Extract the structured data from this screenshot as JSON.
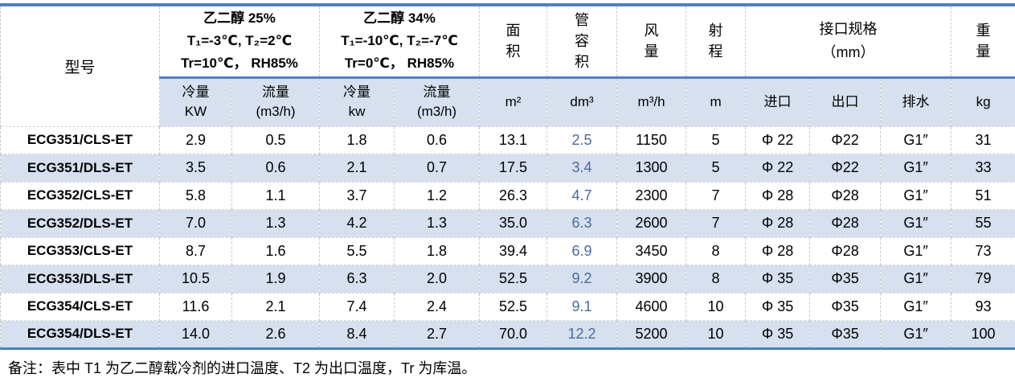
{
  "table": {
    "header": {
      "model_label": "型号",
      "group1": "乙二醇 25%\nT₁=-3℃, T₂=2℃\nTr=10℃， RH85%",
      "group2": "乙二醇 34%\nT₁=-10℃, T₂=-7℃\nTr=0℃， RH85%",
      "area": "面\n积",
      "tube_volume": "管\n容\n积",
      "air_flow": "风\n量",
      "throw": "射\n程",
      "interface": "接口规格\n（mm）",
      "weight": "重\n量",
      "sub": [
        "冷量\nKW",
        "流量\n(m3/h)",
        "冷量\nkw",
        "流量\n(m3/h)",
        "m²",
        "dm³",
        "m³/h",
        "m",
        "进口",
        "出口",
        "排水",
        "kg"
      ]
    },
    "rows": [
      [
        "ECG351/CLS-ET",
        "2.9",
        "0.5",
        "1.8",
        "0.6",
        "13.1",
        "2.5",
        "1150",
        "5",
        "Φ 22",
        "Φ22",
        "G1″",
        "31"
      ],
      [
        "ECG351/DLS-ET",
        "3.5",
        "0.6",
        "2.1",
        "0.7",
        "17.5",
        "3.4",
        "1300",
        "5",
        "Φ 22",
        "Φ22",
        "G1″",
        "33"
      ],
      [
        "ECG352/CLS-ET",
        "5.8",
        "1.1",
        "3.7",
        "1.2",
        "26.3",
        "4.7",
        "2300",
        "7",
        "Φ 28",
        "Φ28",
        "G1″",
        "51"
      ],
      [
        "ECG352/DLS-ET",
        "7.0",
        "1.3",
        "4.2",
        "1.3",
        "35.0",
        "6.3",
        "2600",
        "7",
        "Φ 28",
        "Φ28",
        "G1″",
        "55"
      ],
      [
        "ECG353/CLS-ET",
        "8.7",
        "1.6",
        "5.5",
        "1.8",
        "39.4",
        "6.9",
        "3450",
        "8",
        "Φ 28",
        "Φ28",
        "G1″",
        "73"
      ],
      [
        "ECG353/DLS-ET",
        "10.5",
        "1.9",
        "6.3",
        "2.0",
        "52.5",
        "9.2",
        "3900",
        "8",
        "Φ 35",
        "Φ35",
        "G1″",
        "79"
      ],
      [
        "ECG354/CLS-ET",
        "11.6",
        "2.1",
        "7.4",
        "2.4",
        "52.5",
        "9.1",
        "4600",
        "10",
        "Φ 35",
        "Φ35",
        "G1″",
        "93"
      ],
      [
        "ECG354/DLS-ET",
        "14.0",
        "2.6",
        "8.4",
        "2.7",
        "70.0",
        "12.2",
        "5200",
        "10",
        "Φ 35",
        "Φ35",
        "G1″",
        "100"
      ]
    ],
    "colors": {
      "accent_line": "#4F81BD",
      "stripe_fill": "#D6E0EF",
      "volume_text_blue": "#4A6A9D",
      "grid_dash": "#C9C9C9"
    }
  },
  "footnote": "备注：表中 T1 为乙二醇载冷剂的进口温度、T2 为出口温度，Tr 为库温。"
}
